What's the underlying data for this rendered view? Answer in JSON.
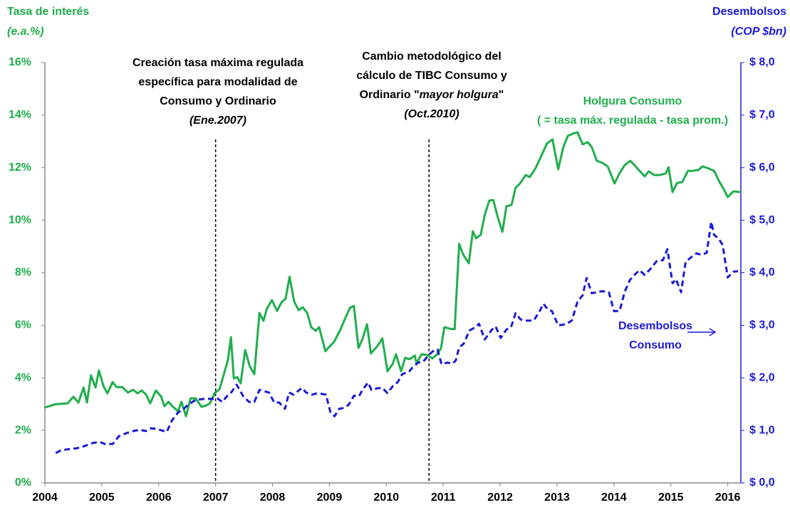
{
  "chart_data": {
    "type": "line",
    "ylabel": "Tasa de interés",
    "ylabel_unit": "(e.a.%)",
    "y2label": "Desembolsos",
    "y2label_unit": "(COP $bn)",
    "xlim": [
      2004,
      2016.23
    ],
    "xticks": [
      2004,
      2005,
      2006,
      2007,
      2008,
      2009,
      2010,
      2011,
      2012,
      2013,
      2014,
      2015,
      2016
    ],
    "ylim": [
      0,
      16
    ],
    "yticks": [
      {
        "value": 0,
        "label": "0%"
      },
      {
        "value": 2,
        "label": "2%"
      },
      {
        "value": 4,
        "label": "4%"
      },
      {
        "value": 6,
        "label": "6%"
      },
      {
        "value": 8,
        "label": "8%"
      },
      {
        "value": 10,
        "label": "10%"
      },
      {
        "value": 12,
        "label": "12%"
      },
      {
        "value": 14,
        "label": "14%"
      },
      {
        "value": 16,
        "label": "16%"
      }
    ],
    "y2lim": [
      0,
      8
    ],
    "y2ticks": [
      {
        "value": 0,
        "label": "$ 0,0"
      },
      {
        "value": 1,
        "label": "$ 1,0"
      },
      {
        "value": 2,
        "label": "$ 2,0"
      },
      {
        "value": 3,
        "label": "$ 3,0"
      },
      {
        "value": 4,
        "label": "$ 4,0"
      },
      {
        "value": 5,
        "label": "$ 5,0"
      },
      {
        "value": 6,
        "label": "$ 6,0"
      },
      {
        "value": 7,
        "label": "$ 7,0"
      },
      {
        "value": 8,
        "label": "$ 8,0"
      }
    ],
    "vlines": [
      2007,
      2010.75
    ],
    "annotations": [
      {
        "lines": [
          [
            {
              "text": "Creación tasa máxima regulada"
            }
          ],
          [
            {
              "text": "específica para modalidad de"
            }
          ],
          [
            {
              "text": "Consumo y Ordinario"
            }
          ],
          [
            {
              "text": "(Ene.2007)",
              "italic": true
            }
          ]
        ]
      },
      {
        "lines": [
          [
            {
              "text": "Cambio metodológico del"
            }
          ],
          [
            {
              "text": "cálculo de TIBC Consumo y"
            }
          ],
          [
            {
              "text": "Ordinario \""
            },
            {
              "text": "mayor holgura",
              "italic": true
            },
            {
              "text": "\""
            }
          ],
          [
            {
              "text": "(Oct.2010)",
              "italic": true
            }
          ]
        ]
      }
    ],
    "series": [
      {
        "label": [
          "Holgura Consumo",
          "( = tasa máx. regulada - tasa prom.)"
        ],
        "color": "#1fae4b",
        "dash": false,
        "x": [
          2004.0,
          2004.19,
          2004.4,
          2004.5,
          2004.59,
          2004.68,
          2004.74,
          2004.81,
          2004.89,
          2004.95,
          2005.03,
          2005.1,
          2005.19,
          2005.26,
          2005.36,
          2005.46,
          2005.55,
          2005.63,
          2005.7,
          2005.78,
          2005.85,
          2005.95,
          2006.04,
          2006.1,
          2006.17,
          2006.24,
          2006.34,
          2006.4,
          2006.48,
          2006.56,
          2006.65,
          2006.75,
          2006.84,
          2006.9,
          2006.98,
          2007.07,
          2007.15,
          2007.22,
          2007.27,
          2007.32,
          2007.38,
          2007.44,
          2007.52,
          2007.6,
          2007.68,
          2007.77,
          2007.84,
          2007.9,
          2007.99,
          2008.08,
          2008.16,
          2008.23,
          2008.3,
          2008.38,
          2008.46,
          2008.53,
          2008.61,
          2008.68,
          2008.76,
          2008.82,
          2008.93,
          2008.98,
          2009.08,
          2009.19,
          2009.29,
          2009.36,
          2009.43,
          2009.51,
          2009.58,
          2009.66,
          2009.73,
          2009.84,
          2009.93,
          2010.02,
          2010.11,
          2010.17,
          2010.26,
          2010.33,
          2010.41,
          2010.5,
          2010.53,
          2010.62,
          2010.72,
          2010.81,
          2010.88,
          2010.96,
          2011.02,
          2011.12,
          2011.2,
          2011.28,
          2011.35,
          2011.45,
          2011.52,
          2011.58,
          2011.66,
          2011.73,
          2011.81,
          2011.88,
          2011.96,
          2012.04,
          2012.11,
          2012.2,
          2012.27,
          2012.35,
          2012.45,
          2012.52,
          2012.62,
          2012.72,
          2012.82,
          2012.92,
          2013.02,
          2013.11,
          2013.19,
          2013.27,
          2013.36,
          2013.45,
          2013.54,
          2013.61,
          2013.7,
          2013.8,
          2013.89,
          2014.01,
          2014.11,
          2014.19,
          2014.29,
          2014.36,
          2014.45,
          2014.54,
          2014.61,
          2014.71,
          2014.8,
          2014.91,
          2014.96,
          2015.03,
          2015.11,
          2015.2,
          2015.3,
          2015.38,
          2015.48,
          2015.56,
          2015.66,
          2015.76,
          2015.85,
          2015.93,
          2016.0,
          2016.1,
          2016.23
        ],
        "values": [
          2.87,
          3.0,
          3.03,
          3.28,
          3.06,
          3.63,
          3.06,
          4.09,
          3.63,
          4.28,
          3.68,
          3.41,
          3.84,
          3.65,
          3.65,
          3.44,
          3.55,
          3.41,
          3.52,
          3.36,
          3.03,
          3.52,
          3.3,
          2.92,
          3.09,
          2.92,
          2.73,
          3.09,
          2.54,
          3.22,
          3.22,
          2.9,
          2.95,
          3.03,
          3.41,
          3.57,
          4.17,
          4.71,
          5.55,
          3.98,
          4.03,
          3.79,
          5.06,
          4.44,
          4.14,
          6.47,
          6.17,
          6.63,
          6.96,
          6.55,
          6.88,
          7.01,
          7.85,
          6.9,
          6.58,
          6.69,
          6.47,
          5.93,
          5.79,
          5.93,
          5.01,
          5.14,
          5.36,
          5.82,
          6.33,
          6.66,
          6.74,
          5.14,
          5.47,
          6.04,
          4.93,
          5.2,
          5.5,
          4.25,
          4.52,
          4.9,
          4.25,
          4.76,
          4.71,
          4.85,
          4.55,
          4.9,
          4.87,
          4.74,
          4.87,
          5.12,
          5.93,
          5.87,
          5.85,
          9.1,
          8.69,
          8.36,
          9.58,
          9.31,
          9.45,
          10.21,
          10.75,
          10.77,
          10.1,
          9.56,
          10.53,
          10.58,
          11.23,
          11.4,
          11.72,
          11.64,
          11.97,
          12.43,
          12.91,
          13.08,
          11.94,
          12.78,
          13.21,
          13.29,
          13.35,
          12.89,
          12.97,
          12.78,
          12.26,
          12.18,
          12.05,
          11.4,
          11.83,
          12.1,
          12.26,
          12.1,
          11.88,
          11.67,
          11.86,
          11.72,
          11.72,
          11.78,
          12.02,
          11.07,
          11.42,
          11.45,
          11.88,
          11.88,
          11.91,
          12.05,
          11.97,
          11.88,
          11.48,
          11.18,
          10.88,
          11.1,
          11.07
        ]
      },
      {
        "label": [
          "Desembolsos",
          "Consumo"
        ],
        "color": "#1a1ad8",
        "dash": true,
        "axis": "y2",
        "x": [
          2004.19,
          2004.28,
          2004.4,
          2004.56,
          2004.69,
          2004.84,
          2004.96,
          2005.06,
          2005.19,
          2005.3,
          2005.44,
          2005.56,
          2005.66,
          2005.78,
          2005.86,
          2005.96,
          2006.05,
          2006.14,
          2006.24,
          2006.34,
          2006.44,
          2006.53,
          2006.65,
          2006.8,
          2006.93,
          2007.03,
          2007.12,
          2007.19,
          2007.28,
          2007.37,
          2007.43,
          2007.49,
          2007.59,
          2007.68,
          2007.77,
          2007.84,
          2007.94,
          2008.03,
          2008.12,
          2008.22,
          2008.29,
          2008.37,
          2008.46,
          2008.52,
          2008.59,
          2008.69,
          2008.76,
          2008.84,
          2008.94,
          2009.02,
          2009.09,
          2009.17,
          2009.26,
          2009.34,
          2009.43,
          2009.52,
          2009.58,
          2009.68,
          2009.74,
          2009.84,
          2009.93,
          2010.02,
          2010.12,
          2010.2,
          2010.28,
          2010.4,
          2010.47,
          2010.56,
          2010.65,
          2010.72,
          2010.81,
          2010.9,
          2010.97,
          2011.07,
          2011.16,
          2011.22,
          2011.28,
          2011.36,
          2011.46,
          2011.56,
          2011.63,
          2011.73,
          2011.85,
          2011.92,
          2012.01,
          2012.11,
          2012.19,
          2012.27,
          2012.36,
          2012.47,
          2012.59,
          2012.69,
          2012.76,
          2012.84,
          2012.91,
          2013.02,
          2013.16,
          2013.26,
          2013.36,
          2013.45,
          2013.52,
          2013.61,
          2013.7,
          2013.79,
          2013.91,
          2014.0,
          2014.1,
          2014.19,
          2014.28,
          2014.36,
          2014.45,
          2014.54,
          2014.63,
          2014.75,
          2014.86,
          2014.94,
          2015.03,
          2015.09,
          2015.18,
          2015.26,
          2015.35,
          2015.45,
          2015.54,
          2015.63,
          2015.71,
          2015.76,
          2015.84,
          2015.91,
          2016.0,
          2016.1,
          2016.18
        ],
        "values": [
          0.57,
          0.62,
          0.64,
          0.66,
          0.7,
          0.76,
          0.78,
          0.74,
          0.74,
          0.89,
          0.95,
          0.99,
          1.01,
          0.99,
          1.04,
          1.03,
          1.0,
          0.97,
          1.2,
          1.34,
          1.41,
          1.5,
          1.58,
          1.6,
          1.6,
          1.61,
          1.54,
          1.64,
          1.73,
          1.87,
          1.76,
          1.64,
          1.54,
          1.54,
          1.77,
          1.75,
          1.72,
          1.53,
          1.53,
          1.41,
          1.72,
          1.68,
          1.76,
          1.81,
          1.72,
          1.68,
          1.7,
          1.7,
          1.68,
          1.34,
          1.27,
          1.41,
          1.43,
          1.49,
          1.66,
          1.65,
          1.77,
          1.91,
          1.77,
          1.8,
          1.81,
          1.71,
          1.85,
          1.92,
          2.07,
          2.12,
          2.21,
          2.29,
          2.31,
          2.4,
          2.5,
          2.54,
          2.26,
          2.29,
          2.27,
          2.33,
          2.58,
          2.65,
          2.9,
          2.96,
          3.03,
          2.73,
          2.91,
          2.98,
          2.76,
          2.92,
          2.96,
          3.23,
          3.11,
          3.09,
          3.09,
          3.26,
          3.41,
          3.3,
          3.27,
          3.0,
          3.02,
          3.09,
          3.45,
          3.57,
          3.9,
          3.61,
          3.63,
          3.65,
          3.63,
          3.27,
          3.27,
          3.64,
          3.86,
          3.96,
          4.05,
          3.96,
          4.06,
          4.22,
          4.24,
          4.45,
          3.8,
          3.88,
          3.63,
          4.21,
          4.29,
          4.37,
          4.34,
          4.38,
          4.97,
          4.72,
          4.65,
          4.53,
          3.91,
          4.02,
          4.03
        ]
      }
    ]
  }
}
